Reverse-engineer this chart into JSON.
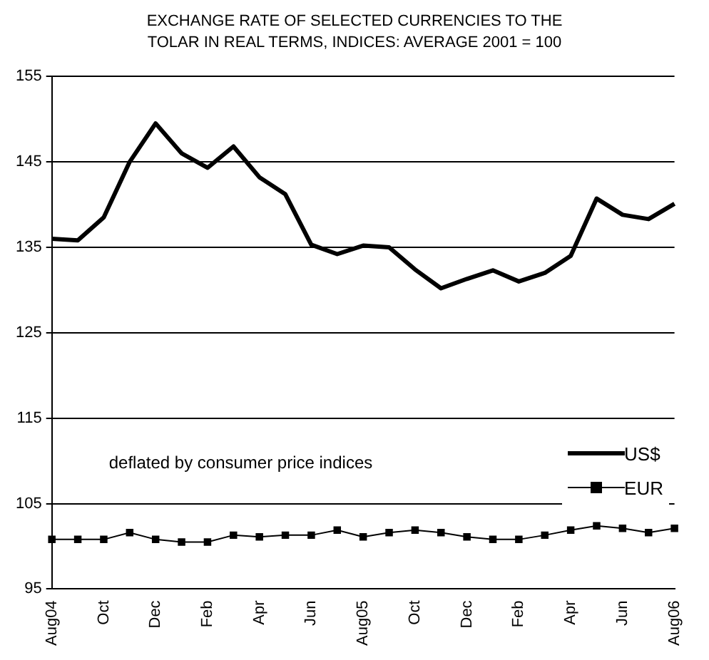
{
  "chart_data": {
    "type": "line",
    "title": "EXCHANGE RATE OF SELECTED CURRENCIES TO THE TOLAR IN REAL TERMS, INDICES: AVERAGE 2001 = 100",
    "categories": [
      "Aug04",
      null,
      "Oct",
      null,
      "Dec",
      null,
      "Feb",
      null,
      "Apr",
      null,
      "Jun",
      null,
      "Aug05",
      null,
      "Oct",
      null,
      "Dec",
      null,
      "Feb",
      null,
      "Apr",
      null,
      "Jun",
      null,
      "Aug06"
    ],
    "series": [
      {
        "name": "US$",
        "color": "#000000",
        "marker": "none",
        "values": [
          136,
          135.8,
          138.5,
          145,
          149.5,
          146,
          144.3,
          146.8,
          143.2,
          141.2,
          135.3,
          134.2,
          135.2,
          135,
          132.4,
          130.2,
          131.3,
          132.3,
          131,
          132,
          134,
          140.7,
          138.8,
          138.3,
          140.1
        ]
      },
      {
        "name": "EUR",
        "color": "#000000",
        "marker": "square",
        "values": [
          100.8,
          100.8,
          100.8,
          101.6,
          100.8,
          100.5,
          100.5,
          101.3,
          101.1,
          101.3,
          101.3,
          101.9,
          101.1,
          101.6,
          101.9,
          101.6,
          101.1,
          100.8,
          100.8,
          101.3,
          101.9,
          102.4,
          102.1,
          101.6,
          102.1
        ]
      }
    ],
    "ylim": [
      95,
      155
    ],
    "yticks": [
      95,
      105,
      115,
      125,
      135,
      145,
      155
    ],
    "grid": "y",
    "legend": "bottom right",
    "annotations": [
      "deflated by consumer price indices"
    ]
  }
}
